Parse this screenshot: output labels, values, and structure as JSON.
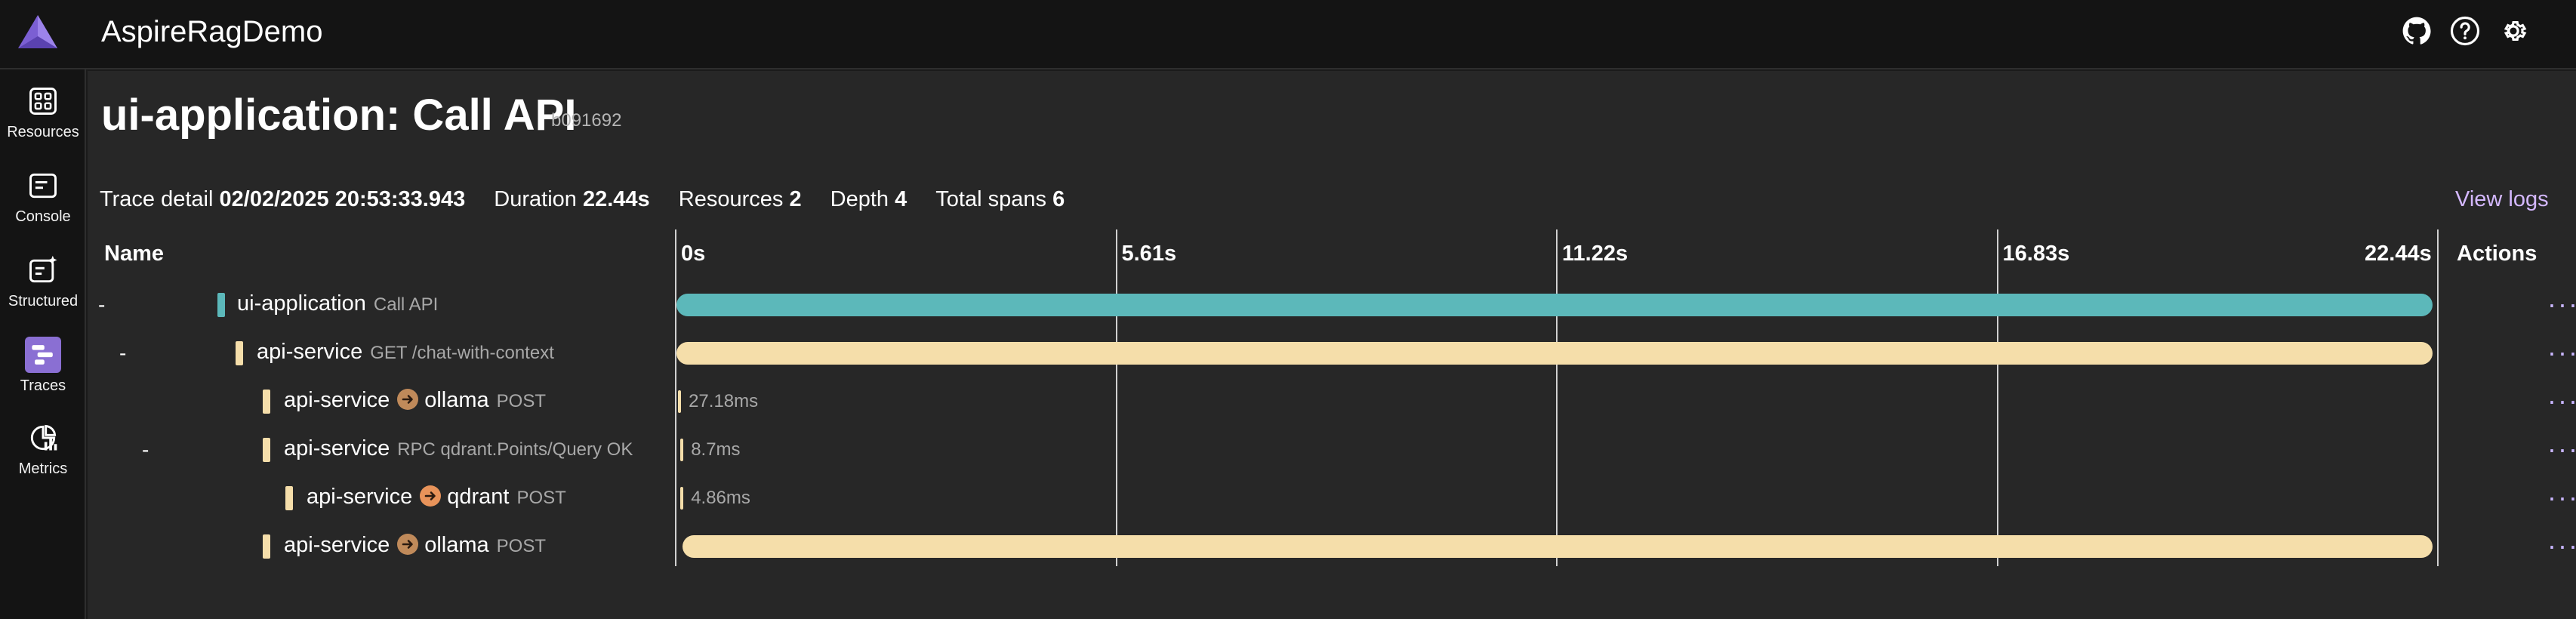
{
  "header": {
    "app_title": "AspireRagDemo",
    "icons": [
      "github-icon",
      "help-icon",
      "settings-icon"
    ]
  },
  "sidebar": {
    "items": [
      {
        "label": "Resources",
        "icon": "resources-icon",
        "active": false
      },
      {
        "label": "Console",
        "icon": "console-icon",
        "active": false
      },
      {
        "label": "Structured",
        "icon": "structured-icon",
        "active": false
      },
      {
        "label": "Traces",
        "icon": "traces-icon",
        "active": true
      },
      {
        "label": "Metrics",
        "icon": "metrics-icon",
        "active": false
      }
    ]
  },
  "page": {
    "title": "ui-application: Call API",
    "trace_id": "b091692"
  },
  "summary": {
    "trace_detail_label": "Trace detail",
    "trace_detail_value": "02/02/2025 20:53:33.943",
    "duration_label": "Duration",
    "duration_value": "22.44s",
    "resources_label": "Resources",
    "resources_value": "2",
    "depth_label": "Depth",
    "depth_value": "4",
    "spans_label": "Total spans",
    "spans_value": "6",
    "view_logs": "View logs"
  },
  "grid": {
    "name_header": "Name",
    "actions_header": "Actions",
    "ticks": [
      "0s",
      "5.61s",
      "11.22s",
      "16.83s",
      "22.44s"
    ],
    "total_seconds": 22.44,
    "actions_label": "···",
    "colors": {
      "ui_application": "#5cb8ba",
      "api_service": "#f5deaa",
      "peer_ollama": "#c08a5a",
      "peer_qdrant": "#e8935a"
    },
    "rows": [
      {
        "toggle": "-",
        "service": "ui-application",
        "desc": "Call API",
        "peer": "",
        "color_key": "ui_application",
        "start": 0,
        "duration": 22.44,
        "duration_label": ""
      },
      {
        "toggle": "-",
        "service": "api-service",
        "desc": "GET /chat-with-context",
        "peer": "",
        "color_key": "api_service",
        "start": 0,
        "duration": 22.44,
        "duration_label": ""
      },
      {
        "toggle": "",
        "service": "api-service",
        "desc": "POST",
        "peer": "ollama",
        "peer_color_key": "peer_ollama",
        "color_key": "api_service",
        "start": 0.02,
        "duration": 0.02718,
        "duration_label": "27.18ms"
      },
      {
        "toggle": "-",
        "service": "api-service",
        "desc": "RPC qdrant.Points/Query OK",
        "peer": "",
        "color_key": "api_service",
        "start": 0.05,
        "duration": 0.0087,
        "duration_label": "8.7ms"
      },
      {
        "toggle": "",
        "service": "api-service",
        "desc": "POST",
        "peer": "qdrant",
        "peer_color_key": "peer_qdrant",
        "color_key": "api_service",
        "start": 0.05,
        "duration": 0.00486,
        "duration_label": "4.86ms"
      },
      {
        "toggle": "",
        "service": "api-service",
        "desc": "POST",
        "peer": "ollama",
        "peer_color_key": "peer_ollama",
        "color_key": "api_service",
        "start": 0.08,
        "duration": 22.35,
        "duration_label": ""
      }
    ]
  }
}
